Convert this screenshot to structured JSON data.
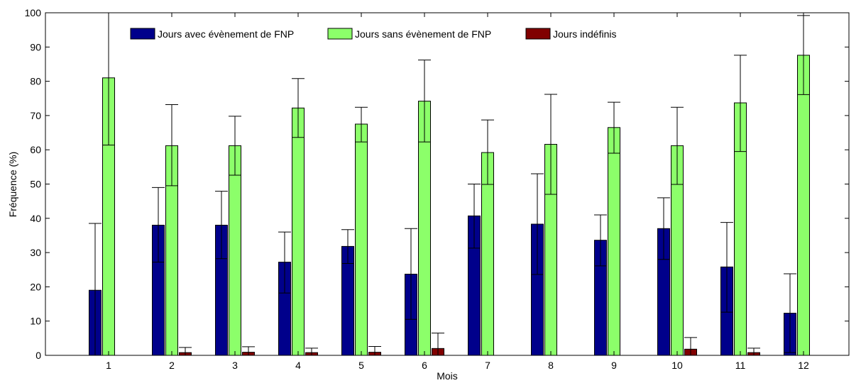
{
  "chart_data": {
    "type": "bar",
    "xlabel": "Mois",
    "ylabel": "Fréquence (%)",
    "ylim": [
      0,
      100
    ],
    "yticks": [
      0,
      10,
      20,
      30,
      40,
      50,
      60,
      70,
      80,
      90,
      100
    ],
    "categories": [
      "1",
      "2",
      "3",
      "4",
      "5",
      "6",
      "7",
      "8",
      "9",
      "10",
      "11",
      "12"
    ],
    "grid": false,
    "legend_position": "top-left",
    "series": [
      {
        "name": "Jours avec évènement de FNP",
        "color": "#00008B",
        "values": [
          19,
          38,
          38,
          27.2,
          31.8,
          23.7,
          40.7,
          38.3,
          33.6,
          37,
          25.8,
          12.3
        ],
        "err_low": [
          0,
          27.2,
          28.2,
          18.2,
          26.8,
          10.5,
          31.3,
          23.6,
          26.1,
          28,
          12.6,
          0.8
        ],
        "err_high": [
          38.5,
          49,
          47.9,
          36,
          36.7,
          37,
          50,
          53,
          41,
          46,
          38.8,
          23.8
        ]
      },
      {
        "name": "Jours sans évènement de FNP",
        "color": "#8CFF6A",
        "values": [
          81,
          61.2,
          61.2,
          72.2,
          67.5,
          74.2,
          59.2,
          61.6,
          66.5,
          61.2,
          73.7,
          87.6
        ],
        "err_low": [
          61.4,
          49.5,
          52.6,
          63.6,
          62.3,
          62.3,
          49.9,
          47,
          59,
          49.9,
          59.5,
          76.1
        ],
        "err_high": [
          100,
          73.2,
          69.8,
          80.8,
          72.4,
          86.2,
          68.7,
          76.2,
          73.9,
          72.4,
          87.6,
          99.2
        ]
      },
      {
        "name": "Jours indéfinis",
        "color": "#800000",
        "values": [
          0,
          0.8,
          0.9,
          0.8,
          0.9,
          2,
          0,
          0,
          0,
          1.8,
          0.8,
          0
        ],
        "err_low": [
          0,
          0,
          0,
          0,
          0,
          0,
          0,
          0,
          0,
          0,
          0,
          0
        ],
        "err_high": [
          0,
          2.3,
          2.5,
          2.1,
          2.6,
          6.5,
          0,
          0,
          0,
          5.2,
          2.1,
          0
        ]
      }
    ]
  }
}
